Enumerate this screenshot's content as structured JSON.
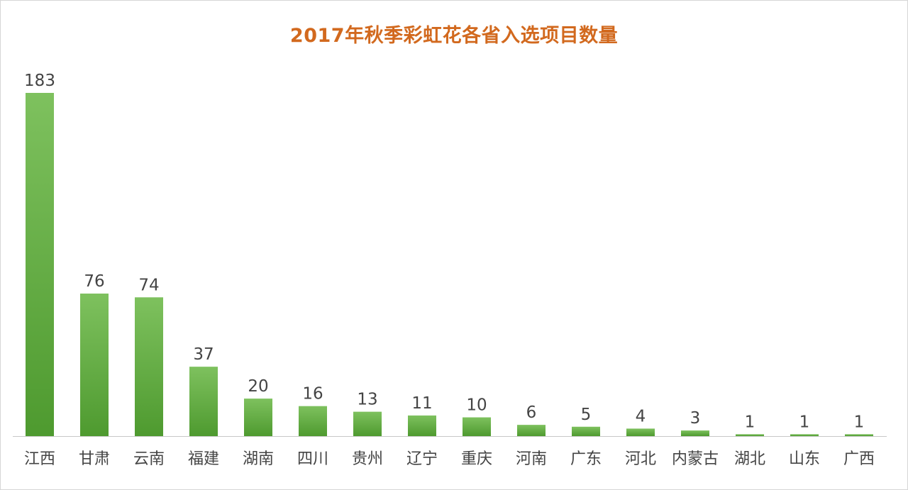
{
  "chart_data": {
    "type": "bar",
    "title": "2017年秋季彩虹花各省入选项目数量",
    "categories": [
      "江西",
      "甘肃",
      "云南",
      "福建",
      "湖南",
      "四川",
      "贵州",
      "辽宁",
      "重庆",
      "河南",
      "广东",
      "河北",
      "内蒙古",
      "湖北",
      "山东",
      "广西"
    ],
    "values": [
      183,
      76,
      74,
      37,
      20,
      16,
      13,
      11,
      10,
      6,
      5,
      4,
      3,
      1,
      1,
      1
    ],
    "xlabel": "",
    "ylabel": "",
    "ylim": [
      0,
      183
    ],
    "grid": false,
    "legend": "none",
    "data_labels": true,
    "colors": {
      "bar_top": "#7ec15e",
      "bar_bottom": "#4e9a2f",
      "title": "#d2691e",
      "label": "#444444",
      "axis": "#c8c8c8"
    }
  }
}
